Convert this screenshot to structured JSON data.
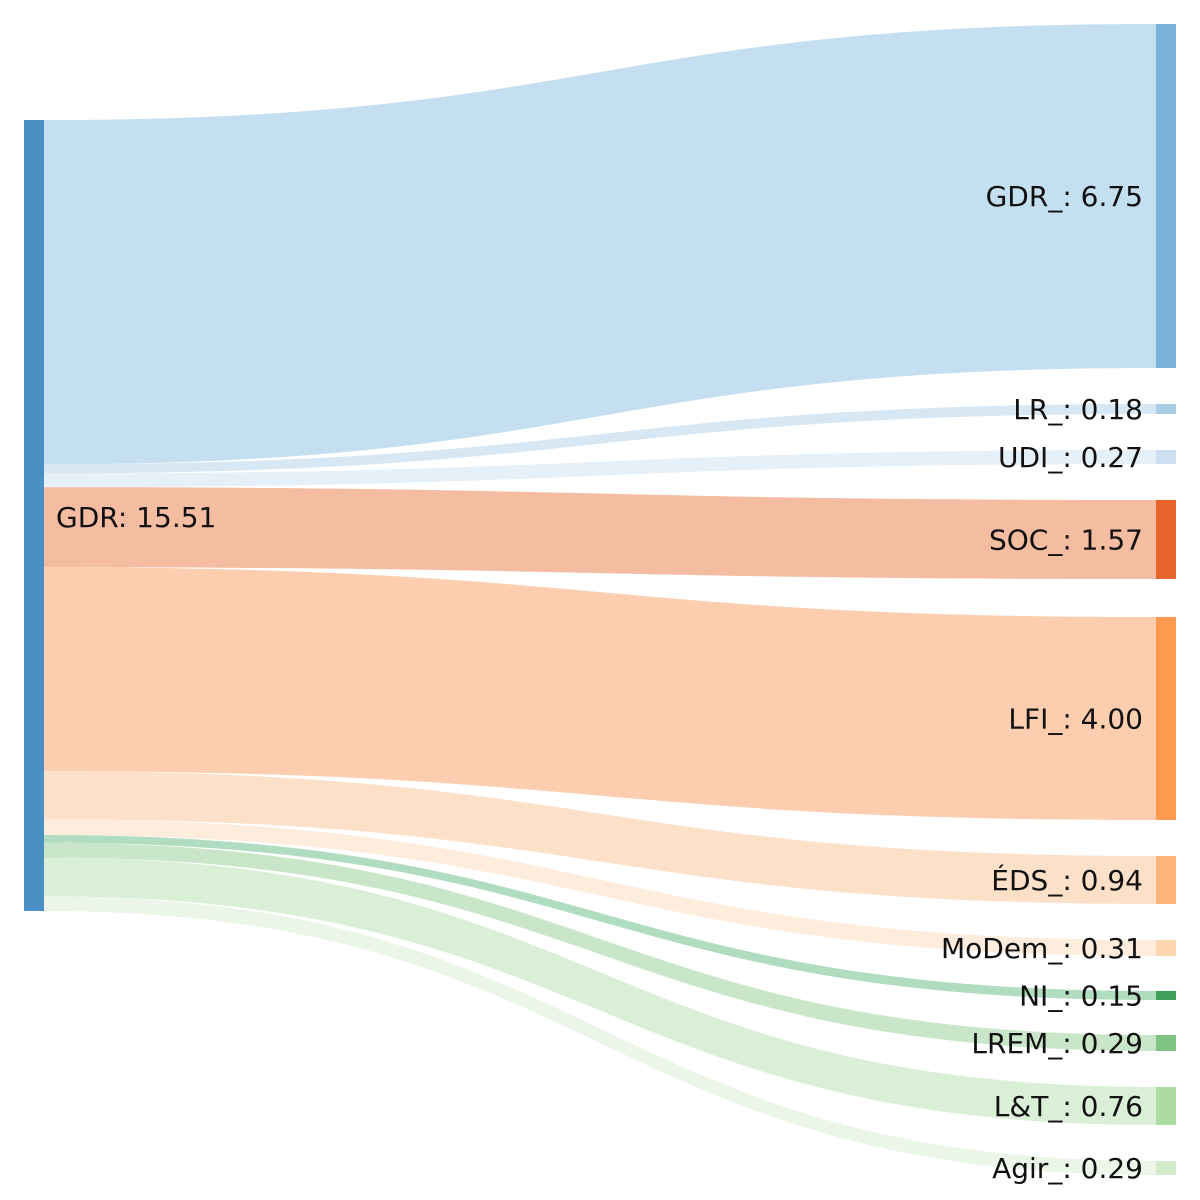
{
  "chart_data": {
    "type": "sankey",
    "source": {
      "id": "GDR",
      "label": "GDR: 15.51",
      "value": 15.51,
      "color": "#4a90c4"
    },
    "targets": [
      {
        "id": "GDR_",
        "label": "GDR_: 6.75",
        "value": 6.75,
        "color": "#79b3da",
        "link_color": "#c4dff0"
      },
      {
        "id": "LR_",
        "label": "LR_: 0.18",
        "value": 0.18,
        "color": "#a8cde4",
        "link_color": "#d7e8f4"
      },
      {
        "id": "UDI_",
        "label": "UDI_: 0.27",
        "value": 0.27,
        "color": "#cddff0",
        "link_color": "#e6f0f9"
      },
      {
        "id": "SOC_",
        "label": "SOC_: 1.57",
        "value": 1.57,
        "color": "#e8642a",
        "link_color": "#f4bca1"
      },
      {
        "id": "LFI_",
        "label": "LFI_: 4.00",
        "value": 4.0,
        "color": "#fd9a4d",
        "link_color": "#fcceaf"
      },
      {
        "id": "EDS_",
        "label": "ÉDS_: 0.94",
        "value": 0.94,
        "color": "#fdb57b",
        "link_color": "#fde0c8"
      },
      {
        "id": "MoDem_",
        "label": "MoDem_: 0.31",
        "value": 0.31,
        "color": "#fdd5b0",
        "link_color": "#feecdd"
      },
      {
        "id": "NI_",
        "label": "NI_: 0.15",
        "value": 0.15,
        "color": "#3fa05a",
        "link_color": "#b0dcc0"
      },
      {
        "id": "LREM_",
        "label": "LREM_: 0.29",
        "value": 0.29,
        "color": "#7cc47f",
        "link_color": "#c9e7c8"
      },
      {
        "id": "LT_",
        "label": "L&T_: 0.76",
        "value": 0.76,
        "color": "#acdca4",
        "link_color": "#d9efd6"
      },
      {
        "id": "Agir_",
        "label": "Agir_: 0.29",
        "value": 0.29,
        "color": "#d2ecca",
        "link_color": "#ebf6e8"
      }
    ]
  }
}
